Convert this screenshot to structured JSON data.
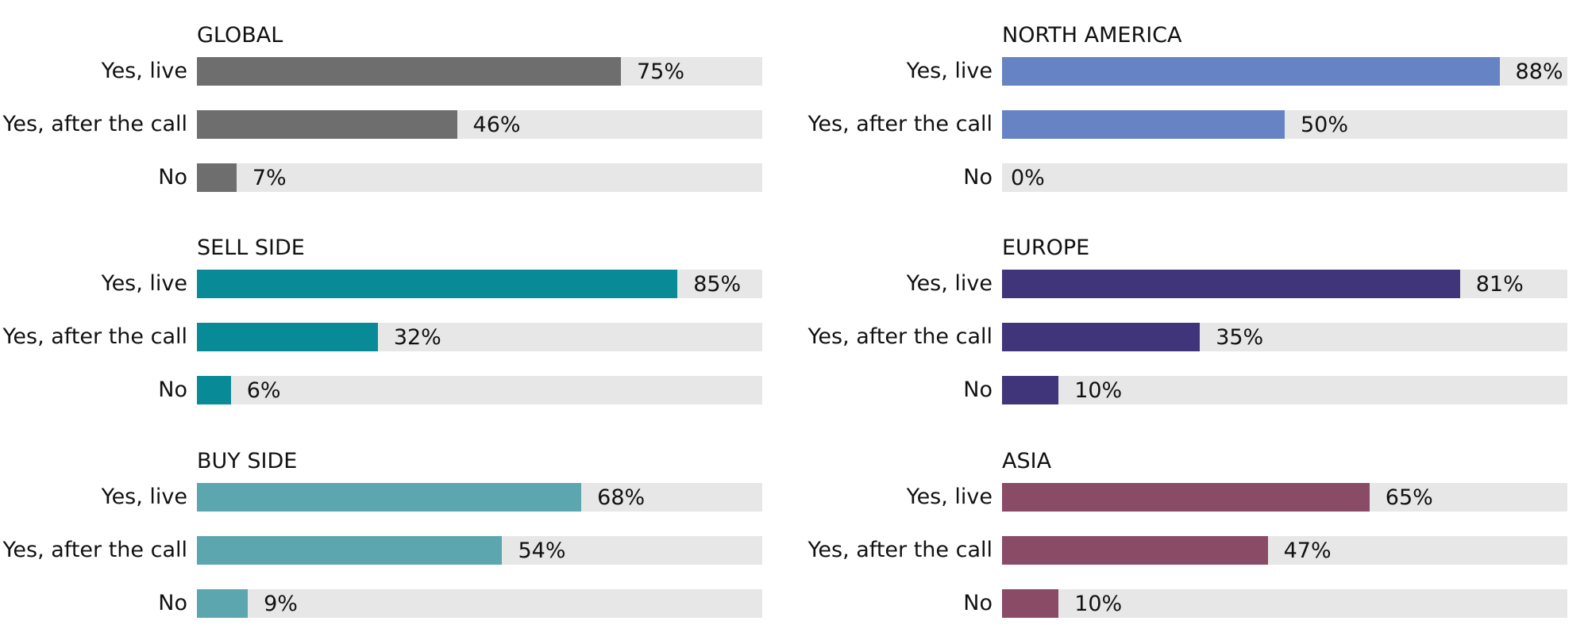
{
  "chart_data": [
    {
      "type": "bar",
      "title": "GLOBAL",
      "categories": [
        "Yes, live",
        "Yes, after the call",
        "No"
      ],
      "values": [
        75,
        46,
        7
      ],
      "value_labels": [
        "75%",
        "46%",
        "7%"
      ],
      "color": "#6e6e6e",
      "xlim": [
        0,
        100
      ],
      "orientation": "horizontal"
    },
    {
      "type": "bar",
      "title": "NORTH AMERICA",
      "categories": [
        "Yes, live",
        "Yes, after the call",
        "No"
      ],
      "values": [
        88,
        50,
        0
      ],
      "value_labels": [
        "88%",
        "50%",
        "0%"
      ],
      "color": "#6684c4",
      "xlim": [
        0,
        100
      ],
      "orientation": "horizontal"
    },
    {
      "type": "bar",
      "title": "SELL SIDE",
      "categories": [
        "Yes, live",
        "Yes, after the call",
        "No"
      ],
      "values": [
        85,
        32,
        6
      ],
      "value_labels": [
        "85%",
        "32%",
        "6%"
      ],
      "color": "#098b97",
      "xlim": [
        0,
        100
      ],
      "orientation": "horizontal"
    },
    {
      "type": "bar",
      "title": "EUROPE",
      "categories": [
        "Yes, live",
        "Yes, after the call",
        "No"
      ],
      "values": [
        81,
        35,
        10
      ],
      "value_labels": [
        "81%",
        "35%",
        "10%"
      ],
      "color": "#40357a",
      "xlim": [
        0,
        100
      ],
      "orientation": "horizontal"
    },
    {
      "type": "bar",
      "title": "BUY SIDE",
      "categories": [
        "Yes, live",
        "Yes, after the call",
        "No"
      ],
      "values": [
        68,
        54,
        9
      ],
      "value_labels": [
        "68%",
        "54%",
        "9%"
      ],
      "color": "#5ca6b0",
      "xlim": [
        0,
        100
      ],
      "orientation": "horizontal"
    },
    {
      "type": "bar",
      "title": "ASIA",
      "categories": [
        "Yes, live",
        "Yes, after the call",
        "No"
      ],
      "values": [
        65,
        47,
        10
      ],
      "value_labels": [
        "65%",
        "47%",
        "10%"
      ],
      "color": "#894b66",
      "xlim": [
        0,
        100
      ],
      "orientation": "horizontal"
    }
  ]
}
